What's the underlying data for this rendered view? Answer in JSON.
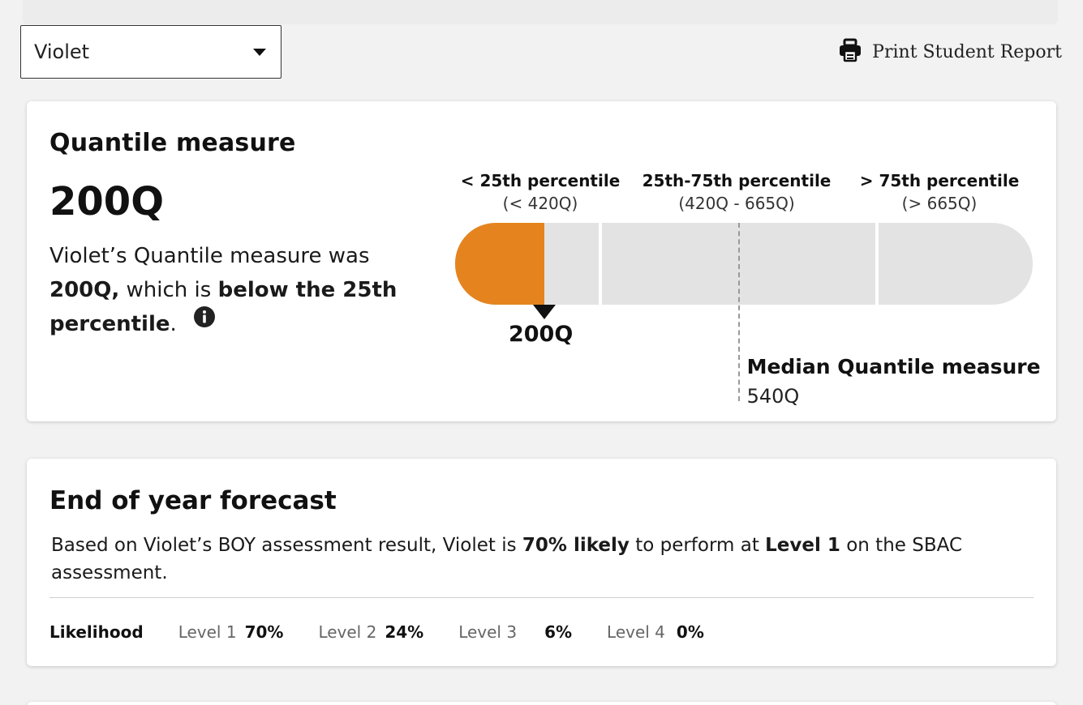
{
  "student_select": {
    "value": "Violet"
  },
  "print": {
    "label": "Print Student Report",
    "icon": "printer-icon"
  },
  "quantile": {
    "title": "Quantile measure",
    "value": "200Q",
    "desc_prefix": "Violet’s Quantile measure was",
    "desc_value": "200Q,",
    "desc_mid": "which is",
    "desc_bold": "below the 25th percentile",
    "desc_end": ".",
    "percentiles": [
      {
        "label": "< 25th percentile",
        "range": "(< 420Q)"
      },
      {
        "label": "25th-75th percentile",
        "range": "(420Q - 665Q)"
      },
      {
        "label": "> 75th percentile",
        "range": "(> 665Q)"
      }
    ],
    "marker_label": "200Q",
    "median_title": "Median Quantile measure",
    "median_value": "540Q",
    "scale": {
      "fill_fraction": 0.154,
      "divider_fractions": [
        0.252,
        0.731
      ],
      "marker_fraction": 0.154,
      "median_fraction": 0.491
    },
    "fill_color": "#e5841f"
  },
  "forecast": {
    "title": "End of year forecast",
    "desc_1": "Based on Violet’s BOY assessment result, Violet is",
    "desc_bold_1": "70% likely",
    "desc_2": "to perform at",
    "desc_bold_2": "Level 1",
    "desc_3": "on the SBAC assessment.",
    "likelihood_label": "Likelihood",
    "levels": [
      {
        "name": "Level 1",
        "value": "70%"
      },
      {
        "name": "Level 2",
        "value": "24%"
      },
      {
        "name": "Level 3",
        "value": "6%"
      },
      {
        "name": "Level 4",
        "value": "0%"
      }
    ]
  }
}
